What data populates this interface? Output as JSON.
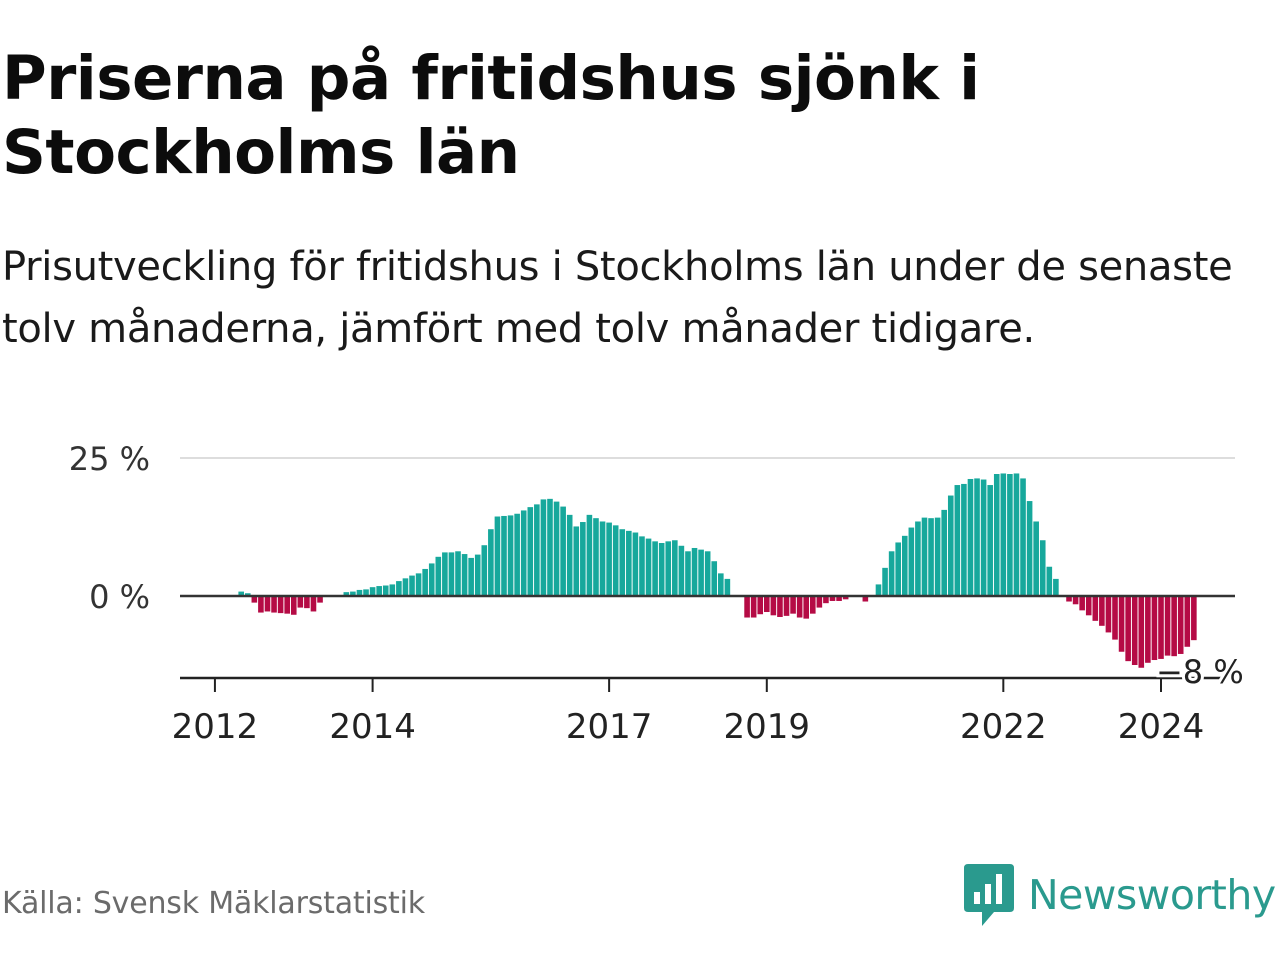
{
  "title": "Priserna på fritidshus sjönk i Stockholms län",
  "subtitle": "Prisutveckling för fritidshus i Stockholms län under de senaste tolv månaderna, jämfört med tolv månader tidigare.",
  "source": "Källa: Svensk Mäklarstatistik",
  "brand": {
    "name": "Newsworthy",
    "icon": "newsworthy-logo-icon",
    "color": "#2a9a8e"
  },
  "colors": {
    "positive": "#17a89c",
    "negative": "#b50b45",
    "zero_line": "#333333",
    "grid": "#dddddd"
  },
  "chart_data": {
    "type": "bar",
    "title": "Priserna på fritidshus sjönk i Stockholms län",
    "ylabel": "",
    "xlabel": "",
    "ylim": [
      -15,
      25
    ],
    "yticks": [
      {
        "value": 25,
        "label": "25 %"
      },
      {
        "value": 0,
        "label": "0 %"
      }
    ],
    "xticks": [
      {
        "label": "2012",
        "index": 6
      },
      {
        "label": "2014",
        "index": 30
      },
      {
        "label": "2017",
        "index": 66
      },
      {
        "label": "2019",
        "index": 90
      },
      {
        "label": "2022",
        "index": 126
      },
      {
        "label": "2024",
        "index": 150
      }
    ],
    "end_label": "−8 %",
    "values": [
      0,
      0,
      0,
      0,
      0,
      0,
      0,
      0,
      0,
      0,
      0.8,
      0.5,
      -1.2,
      -3,
      -2.8,
      -3,
      -3.1,
      -3.2,
      -3.4,
      -2.1,
      -2.2,
      -2.8,
      -1.2,
      0,
      0,
      0,
      0.7,
      0.8,
      1.1,
      1.2,
      1.6,
      1.8,
      1.9,
      2.1,
      2.7,
      3.2,
      3.7,
      4.1,
      4.9,
      5.9,
      7.1,
      7.9,
      7.9,
      8.1,
      7.6,
      6.9,
      7.5,
      9.2,
      12.1,
      14.4,
      14.5,
      14.6,
      14.9,
      15.5,
      16.1,
      16.6,
      17.5,
      17.6,
      17.1,
      16.2,
      14.7,
      12.6,
      13.4,
      14.7,
      14.1,
      13.5,
      13.3,
      12.8,
      12.1,
      11.8,
      11.5,
      10.8,
      10.4,
      9.9,
      9.6,
      9.9,
      10.1,
      9.1,
      8.1,
      8.7,
      8.4,
      8.1,
      6.3,
      4.1,
      3.1,
      0,
      0,
      -3.9,
      -3.9,
      -3.3,
      -2.9,
      -3.5,
      -3.8,
      -3.6,
      -3.2,
      -3.9,
      -4.1,
      -3.2,
      -2.1,
      -1.3,
      -0.9,
      -0.9,
      -0.6,
      0,
      0,
      -1,
      0,
      2.1,
      5.1,
      8.1,
      9.7,
      10.9,
      12.4,
      13.5,
      14.2,
      14.1,
      14.2,
      15.6,
      18.2,
      20.1,
      20.3,
      21.2,
      21.3,
      21.1,
      20.1,
      22.1,
      22.2,
      22.1,
      22.2,
      21.3,
      17.2,
      13.5,
      10.1,
      5.3,
      3.1,
      0,
      -1,
      -1.5,
      -2.6,
      -3.5,
      -4.5,
      -5.4,
      -6.6,
      -7.9,
      -10.1,
      -11.8,
      -12.5,
      -13,
      -12.1,
      -11.6,
      -11.4,
      -10.8,
      -10.9,
      -10.5,
      -9.2,
      -8
    ]
  }
}
